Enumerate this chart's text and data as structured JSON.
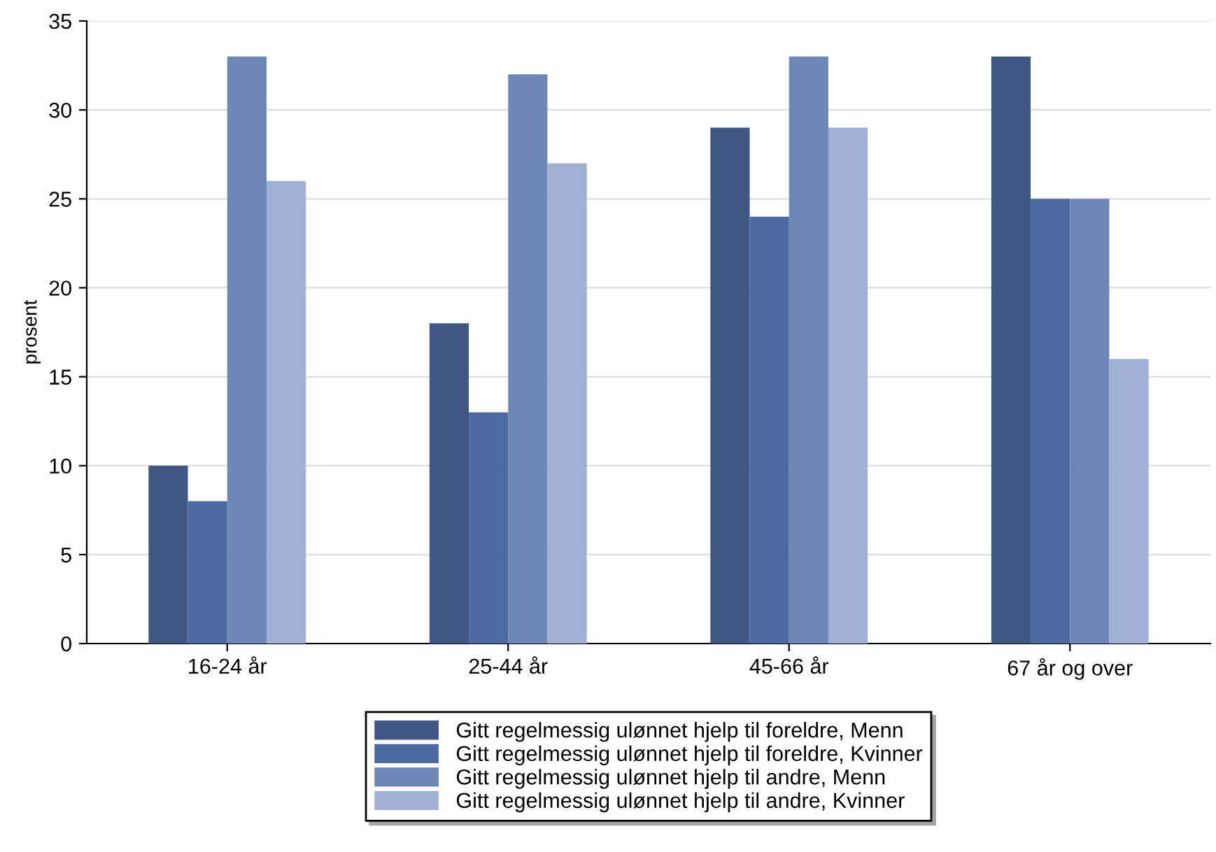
{
  "chart_data": {
    "type": "bar",
    "ylabel": "prosent",
    "categories": [
      "16-24 år",
      "25-44 år",
      "45-66 år",
      "67 år og over"
    ],
    "series": [
      {
        "name": "Gitt regelmessig ulønnet hjelp til foreldre, Menn",
        "color": "#3f5782",
        "values": [
          10,
          18,
          29,
          33
        ]
      },
      {
        "name": "Gitt regelmessig ulønnet hjelp til foreldre, Kvinner",
        "color": "#4b6aa2",
        "values": [
          8,
          13,
          24,
          25
        ]
      },
      {
        "name": "Gitt regelmessig ulønnet hjelp til andre, Menn",
        "color": "#6d88b6",
        "values": [
          33,
          32,
          33,
          25
        ]
      },
      {
        "name": "Gitt regelmessig ulønnet hjelp til andre, Kvinner",
        "color": "#a0b1d5",
        "values": [
          26,
          27,
          29,
          16
        ]
      }
    ],
    "ylim": [
      0,
      35
    ],
    "yticks": [
      0,
      5,
      10,
      15,
      20,
      25,
      30,
      35
    ],
    "grid": "y",
    "legend": "bottom"
  }
}
